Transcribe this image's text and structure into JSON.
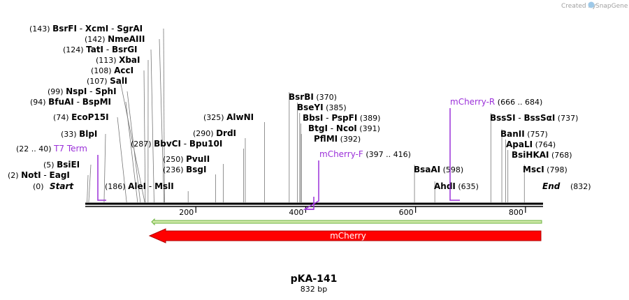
{
  "credit": {
    "created_by": "Created by",
    "brand": "SnapGene"
  },
  "map": {
    "name": "pKA-141",
    "length_label": "832 bp",
    "length_bp": 832,
    "start_label": "Start",
    "start_pos": "(0)",
    "end_label": "End",
    "end_pos": "(832)",
    "ticks": [
      {
        "bp": 200,
        "label": "200"
      },
      {
        "bp": 400,
        "label": "400"
      },
      {
        "bp": 600,
        "label": "600"
      },
      {
        "bp": 800,
        "label": "800"
      }
    ]
  },
  "sites_left": [
    {
      "pos": "(143)",
      "names": [
        "BsrFI",
        "XcmI",
        "SgrAI"
      ],
      "bp": 143
    },
    {
      "pos": "(142)",
      "names": [
        "NmeAIII"
      ],
      "bp": 142
    },
    {
      "pos": "(124)",
      "names": [
        "TatI",
        "BsrGI"
      ],
      "bp": 124
    },
    {
      "pos": "(113)",
      "names": [
        "XbaI"
      ],
      "bp": 113
    },
    {
      "pos": "(108)",
      "names": [
        "AccI"
      ],
      "bp": 108
    },
    {
      "pos": "(107)",
      "names": [
        "SalI"
      ],
      "bp": 107
    },
    {
      "pos": "(99)",
      "names": [
        "NspI",
        "SphI"
      ],
      "bp": 99
    },
    {
      "pos": "(94)",
      "names": [
        "BfuAI",
        "BspMI"
      ],
      "bp": 94
    },
    {
      "pos": "(74)",
      "names": [
        "EcoP15I"
      ],
      "bp": 74
    },
    {
      "pos": "(33)",
      "names": [
        "BlpI"
      ],
      "bp": 33
    },
    {
      "pos": "(5)",
      "names": [
        "BsiEI"
      ],
      "bp": 5
    },
    {
      "pos": "(2)",
      "names": [
        "NotI",
        "EagI"
      ],
      "bp": 2
    }
  ],
  "sites_right_of_label": [
    {
      "pos": "(186)",
      "names": [
        "AleI",
        "MslI"
      ],
      "bp": 186
    },
    {
      "pos": "(287)",
      "names": [
        "BbvCI",
        "Bpu10I"
      ],
      "bp": 287
    },
    {
      "pos": "(250)",
      "names": [
        "PvuII"
      ],
      "bp": 250
    },
    {
      "pos": "(236)",
      "names": [
        "BsgI"
      ],
      "bp": 236
    },
    {
      "pos": "(290)",
      "names": [
        "DrdI"
      ],
      "bp": 290
    },
    {
      "pos": "(325)",
      "names": [
        "AlwNI"
      ],
      "bp": 325
    }
  ],
  "sites_after": [
    {
      "names": [
        "BsrBI"
      ],
      "pos": "(370)",
      "bp": 370
    },
    {
      "names": [
        "BseYI"
      ],
      "pos": "(385)",
      "bp": 385
    },
    {
      "names": [
        "BbsI",
        "PspFI"
      ],
      "pos": "(389)",
      "bp": 389
    },
    {
      "names": [
        "BtgI",
        "NcoI"
      ],
      "pos": "(391)",
      "bp": 391
    },
    {
      "names": [
        "PflMI"
      ],
      "pos": "(392)",
      "bp": 392
    },
    {
      "names": [
        "BsaAI"
      ],
      "pos": "(598)",
      "bp": 598
    },
    {
      "names": [
        "AhdI"
      ],
      "pos": "(635)",
      "bp": 635
    },
    {
      "names": [
        "BssSI",
        "BssSαI"
      ],
      "pos": "(737)",
      "bp": 737
    },
    {
      "names": [
        "BanII"
      ],
      "pos": "(757)",
      "bp": 757
    },
    {
      "names": [
        "ApaLI"
      ],
      "pos": "(764)",
      "bp": 764
    },
    {
      "names": [
        "BsiHKAI"
      ],
      "pos": "(768)",
      "bp": 768
    },
    {
      "names": [
        "MscI"
      ],
      "pos": "(798)",
      "bp": 798
    }
  ],
  "primers": [
    {
      "name": "T7 Term",
      "range": "(22 .. 40)",
      "start": 22,
      "end": 40
    },
    {
      "name": "mCherry-F",
      "range": "(397 .. 416)",
      "start": 397,
      "end": 416
    },
    {
      "name": "mCherry-R",
      "range": "(666 .. 684)",
      "start": 666,
      "end": 684
    }
  ],
  "features": [
    {
      "name": "mCherry",
      "start": 119,
      "end": 832,
      "direction": "reverse",
      "color": "#ff0000"
    },
    {
      "name": "",
      "start": 119,
      "end": 832,
      "direction": "reverse",
      "color": "#8cc63f"
    }
  ],
  "colors": {
    "backbone": "#000000",
    "primer": "#9b30d9",
    "feature": "#ff0000",
    "orf": "#6cb33f",
    "credit": "#a0a0a0"
  },
  "icons": {
    "brand_logo": "snapgene-logo-icon"
  }
}
